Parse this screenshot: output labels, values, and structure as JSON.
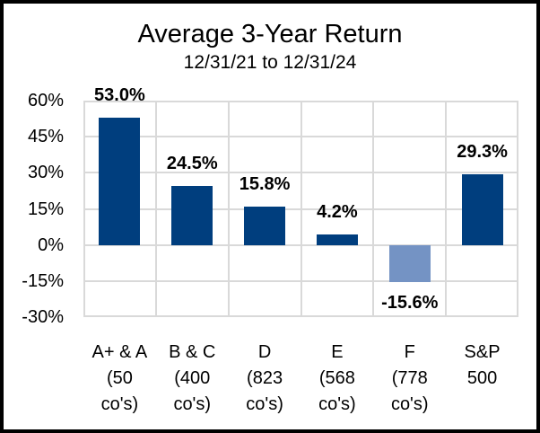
{
  "chart_data": {
    "type": "bar",
    "title": "Average 3-Year Return",
    "subtitle": "12/31/21 to 12/31/24",
    "categories": [
      "A+ & A (50 co's)",
      "B & C (400 co's)",
      "D (823 co's)",
      "E (568 co's)",
      "F (778 co's)",
      "S&P 500"
    ],
    "category_lines": [
      [
        "A+ & A",
        "(50",
        "co's)"
      ],
      [
        "B & C",
        "(400",
        "co's)"
      ],
      [
        "D",
        "(823",
        "co's)"
      ],
      [
        "E",
        "(568",
        "co's)"
      ],
      [
        "F",
        "(778",
        "co's)"
      ],
      [
        "S&P",
        "500"
      ]
    ],
    "values": [
      53.0,
      24.5,
      15.8,
      4.2,
      -15.6,
      29.3
    ],
    "bar_labels": [
      "53.0%",
      "24.5%",
      "15.8%",
      "4.2%",
      "-15.6%",
      "29.3%"
    ],
    "bar_colors": [
      "#003E7E",
      "#003E7E",
      "#003E7E",
      "#003E7E",
      "#7493C4",
      "#003E7E"
    ],
    "y_ticks": [
      {
        "value": 60,
        "label": "60%"
      },
      {
        "value": 45,
        "label": "45%"
      },
      {
        "value": 30,
        "label": "30%"
      },
      {
        "value": 15,
        "label": "15%"
      },
      {
        "value": 0,
        "label": "0%"
      },
      {
        "value": -15,
        "label": "-15%"
      },
      {
        "value": -30,
        "label": "-30%"
      }
    ],
    "ylim": [
      -30,
      60
    ],
    "grid": true,
    "legend": "none",
    "gridline_color": "#D9D9D9",
    "text_color": "#000000",
    "frame_color": "#000000"
  }
}
